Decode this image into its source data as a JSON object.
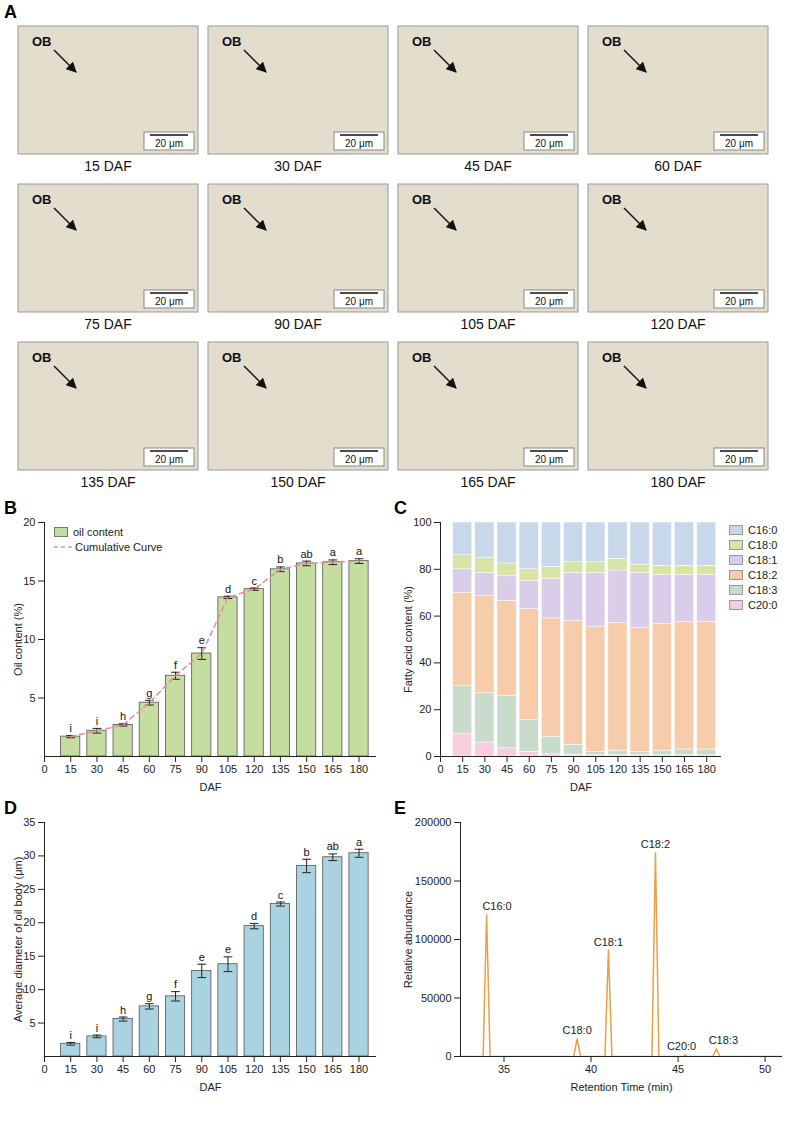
{
  "image_grid": {
    "panel_label": "A",
    "marker_label": "OB",
    "scale_bar": "20 μm",
    "captions": [
      "15 DAF",
      "30 DAF",
      "45 DAF",
      "60 DAF",
      "75 DAF",
      "90 DAF",
      "105 DAF",
      "120 DAF",
      "135 DAF",
      "150 DAF",
      "165 DAF",
      "180 DAF"
    ]
  },
  "chart_data": [
    {
      "type": "bar",
      "panel_label": "B",
      "x": [
        15,
        30,
        45,
        60,
        75,
        90,
        105,
        120,
        135,
        150,
        165,
        180
      ],
      "series": [
        {
          "name": "oil content",
          "type": "bar",
          "color": "#c5dea0",
          "values": [
            1.7,
            2.2,
            2.7,
            4.6,
            6.9,
            8.8,
            13.6,
            14.3,
            16.0,
            16.5,
            16.6,
            16.7
          ],
          "errors": [
            0.1,
            0.2,
            0.1,
            0.2,
            0.3,
            0.5,
            0.1,
            0.1,
            0.2,
            0.2,
            0.2,
            0.2
          ],
          "letters": [
            "i",
            "i",
            "h",
            "g",
            "f",
            "e",
            "d",
            "c",
            "b",
            "ab",
            "a",
            "a"
          ]
        },
        {
          "name": "Cumulative Curve",
          "type": "line",
          "color": "#e8909a",
          "line_style": "dashed",
          "values": [
            1.7,
            2.2,
            2.7,
            4.6,
            6.9,
            8.8,
            13.6,
            14.3,
            16.0,
            16.5,
            16.6,
            16.7
          ]
        }
      ],
      "xlabel": "DAF",
      "ylabel": "Oil content (%)",
      "xlim": [
        0,
        190
      ],
      "xticks": [
        0,
        15,
        30,
        45,
        60,
        75,
        90,
        105,
        120,
        135,
        150,
        165,
        180
      ],
      "ylim": [
        0,
        20
      ],
      "yticks": [
        5,
        10,
        15,
        20
      ],
      "legend": "top-left"
    },
    {
      "type": "bar",
      "panel_label": "C",
      "stacked": true,
      "x": [
        15,
        30,
        45,
        60,
        75,
        90,
        105,
        120,
        135,
        150,
        165,
        180
      ],
      "series": [
        {
          "name": "C16:0",
          "color": "#c9d7ea",
          "values": [
            14,
            15,
            17.5,
            20,
            19,
            17,
            17,
            15.5,
            18,
            18.5,
            18.5,
            18.5
          ]
        },
        {
          "name": "C18:0",
          "color": "#d8e3a6",
          "values": [
            6,
            6.5,
            5.5,
            5,
            5,
            4.5,
            4.5,
            5,
            3.5,
            4,
            4,
            4
          ]
        },
        {
          "name": "C18:1",
          "color": "#d9cdea",
          "values": [
            10,
            10,
            10.5,
            12,
            17,
            20.5,
            23,
            22.5,
            23.5,
            21,
            20,
            20
          ]
        },
        {
          "name": "C18:2",
          "color": "#f7ccaa",
          "values": [
            40,
            41.5,
            40.5,
            47.5,
            50.5,
            53,
            53.5,
            54.5,
            53,
            54,
            54.5,
            54.5
          ]
        },
        {
          "name": "C18:3",
          "color": "#c9dccc",
          "values": [
            20.5,
            21,
            22.5,
            13.5,
            7.5,
            4.2,
            1.5,
            2,
            1.5,
            2,
            2.5,
            2.5
          ]
        },
        {
          "name": "C20:0",
          "color": "#f7cde0",
          "values": [
            9.5,
            6,
            3.5,
            2,
            1,
            0.8,
            0.5,
            0.5,
            0.5,
            0.5,
            0.5,
            0.5
          ]
        }
      ],
      "xlabel": "DAF",
      "ylabel": "Fatty acid content (%)",
      "xlim": [
        0,
        190
      ],
      "xticks": [
        0,
        15,
        30,
        45,
        60,
        75,
        90,
        105,
        120,
        135,
        150,
        165,
        180
      ],
      "ylim": [
        0,
        100
      ],
      "yticks": [
        0,
        20,
        40,
        60,
        80,
        100
      ],
      "legend": "right"
    },
    {
      "type": "bar",
      "panel_label": "D",
      "x": [
        15,
        30,
        45,
        60,
        75,
        90,
        105,
        120,
        135,
        150,
        165,
        180
      ],
      "series": [
        {
          "name": "Average diameter of oil body",
          "type": "bar",
          "color": "#a9d3e0",
          "values": [
            1.9,
            3.0,
            5.6,
            7.5,
            9.0,
            12.8,
            13.8,
            19.5,
            22.8,
            28.5,
            29.8,
            30.4
          ],
          "errors": [
            0.2,
            0.2,
            0.3,
            0.4,
            0.7,
            1.0,
            1.1,
            0.4,
            0.3,
            1.0,
            0.5,
            0.6
          ],
          "letters": [
            "i",
            "i",
            "h",
            "g",
            "f",
            "e",
            "e",
            "d",
            "c",
            "b",
            "ab",
            "a"
          ]
        }
      ],
      "xlabel": "DAF",
      "ylabel": "Average diameter of oil body (μm)",
      "xlim": [
        0,
        190
      ],
      "xticks": [
        0,
        15,
        30,
        45,
        60,
        75,
        90,
        105,
        120,
        135,
        150,
        165,
        180
      ],
      "ylim": [
        0,
        35
      ],
      "yticks": [
        5,
        10,
        15,
        20,
        25,
        30,
        35
      ]
    },
    {
      "type": "line",
      "panel_label": "E",
      "color": "#e9a048",
      "x": [
        32.5,
        33.8,
        34.0,
        34.2,
        39.0,
        39.2,
        39.4,
        40.8,
        41.0,
        41.2,
        43.5,
        43.7,
        43.9,
        45.3,
        45.4,
        45.5,
        47.0,
        47.2,
        47.4,
        51
      ],
      "values": [
        0,
        0,
        121000,
        0,
        0,
        15000,
        0,
        0,
        91000,
        0,
        0,
        174000,
        0,
        0,
        1500,
        0,
        0,
        6500,
        0,
        0
      ],
      "annotations": [
        {
          "text": "C16:0",
          "x": 34.6,
          "y": 121000
        },
        {
          "text": "C18:0",
          "x": 39.2,
          "y": 15000
        },
        {
          "text": "C18:1",
          "x": 41.0,
          "y": 91000
        },
        {
          "text": "C18:2",
          "x": 43.7,
          "y": 174000
        },
        {
          "text": "C20:0",
          "x": 45.2,
          "y": 1500
        },
        {
          "text": "C18:3",
          "x": 47.6,
          "y": 6500
        }
      ],
      "xlabel": "Retention Time (min)",
      "ylabel": "Relative abundance",
      "xlim": [
        32.5,
        51
      ],
      "xticks": [
        35,
        40,
        45,
        50
      ],
      "ylim": [
        0,
        200000
      ],
      "yticks": [
        0,
        50000,
        100000,
        150000,
        200000
      ]
    }
  ]
}
